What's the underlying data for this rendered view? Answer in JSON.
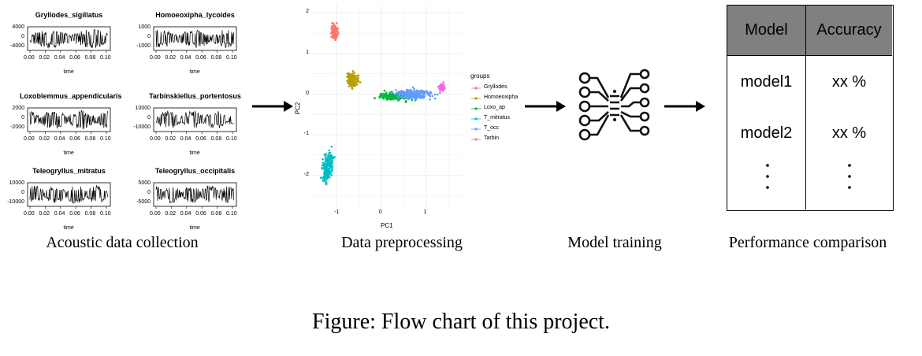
{
  "waveforms": [
    {
      "title": "Gryllodes_sigillatus",
      "yticks": [
        "4000",
        "0",
        "-4000"
      ],
      "xticks": [
        "0.00",
        "0.02",
        "0.04",
        "0.06",
        "0.08",
        "0.10"
      ],
      "xlabel": "time"
    },
    {
      "title": "Homoeoxipha_lycoides",
      "yticks": [
        "1000",
        "0",
        "-1000"
      ],
      "xticks": [
        "0.00",
        "0.02",
        "0.04",
        "0.06",
        "0.08",
        "0.10"
      ],
      "xlabel": "time"
    },
    {
      "title": "Loxoblemmus_appendicularis",
      "yticks": [
        "2000",
        "0",
        "-2000"
      ],
      "xticks": [
        "0.00",
        "0.02",
        "0.04",
        "0.06",
        "0.08",
        "0.10"
      ],
      "xlabel": "time"
    },
    {
      "title": "Tarbinskiellus_portentosus",
      "yticks": [
        "10000",
        "0",
        "-10000"
      ],
      "xticks": [
        "0.00",
        "0.02",
        "0.04",
        "0.06",
        "0.08",
        "0.10"
      ],
      "xlabel": "time"
    },
    {
      "title": "Teleogryllus_mitratus",
      "yticks": [
        "10000",
        "0",
        "-10000"
      ],
      "xticks": [
        "0.00",
        "0.02",
        "0.04",
        "0.06",
        "0.08",
        "0.10"
      ],
      "xlabel": "time"
    },
    {
      "title": "Teleogryllus_occipitalis",
      "yticks": [
        "5000",
        "0",
        "-5000"
      ],
      "xticks": [
        "0.00",
        "0.02",
        "0.04",
        "0.06",
        "0.08",
        "0.10"
      ],
      "xlabel": "time"
    }
  ],
  "stages": {
    "acoustic": "Acoustic data collection",
    "preprocessing": "Data preprocessing",
    "training": "Model training",
    "comparison": "Performance comparison"
  },
  "pca": {
    "xlabel": "PC1",
    "ylabel": "PC2",
    "xticks": [
      "-1",
      "0",
      "1"
    ],
    "yticks": [
      "2",
      "1",
      "0",
      "-1",
      "-2"
    ],
    "legend_title": "groups",
    "groups": [
      {
        "name": "Gryllodes",
        "color": "#f8766d"
      },
      {
        "name": "Homoeoxipha",
        "color": "#b79f00"
      },
      {
        "name": "Loxo_ap",
        "color": "#00ba38"
      },
      {
        "name": "T_mitratus",
        "color": "#00bfc4"
      },
      {
        "name": "T_occ",
        "color": "#619cff"
      },
      {
        "name": "Tarbin",
        "color": "#f564e3"
      }
    ]
  },
  "table": {
    "headers": [
      "Model",
      "Accuracy"
    ],
    "rows": [
      {
        "model": "model1",
        "accuracy": "xx %"
      },
      {
        "model": "model2",
        "accuracy": "xx %"
      }
    ],
    "header_bg": "#808080"
  },
  "caption": "Figure: Flow chart of this project."
}
